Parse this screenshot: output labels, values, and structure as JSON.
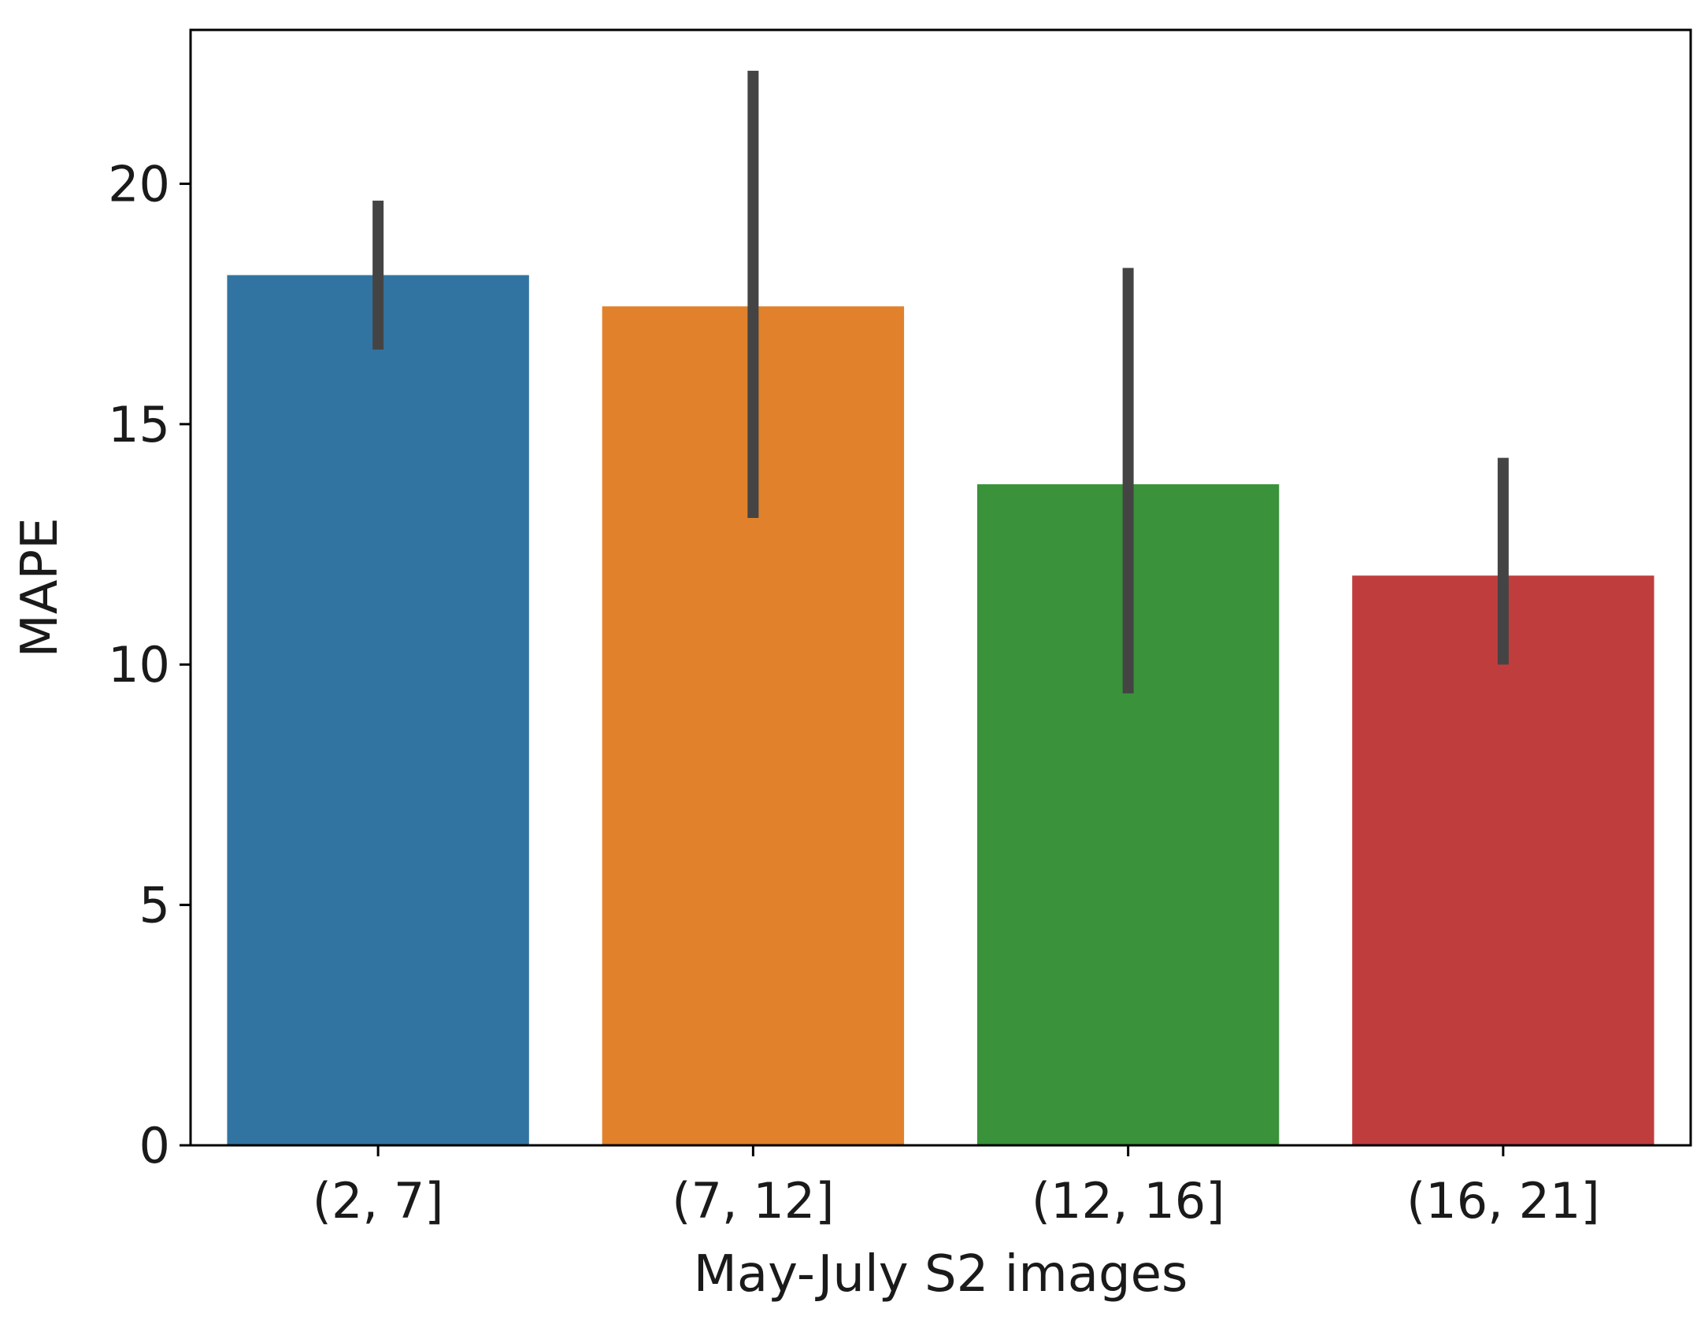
{
  "chart_data": {
    "type": "bar",
    "title": "",
    "xlabel": "May-July S2 images",
    "ylabel": "MAPE",
    "categories": [
      "(2, 7]",
      "(7, 12]",
      "(12, 16]",
      "(16, 21]"
    ],
    "values": [
      18.1,
      17.45,
      13.75,
      11.85
    ],
    "error_low": [
      16.55,
      13.05,
      9.4,
      10.0
    ],
    "error_high": [
      19.65,
      22.35,
      18.25,
      14.3
    ],
    "colors": [
      "#3274a1",
      "#e1812c",
      "#3a923a",
      "#c03d3e"
    ],
    "error_color": "#444444",
    "ylim": [
      0,
      23.2
    ],
    "yticks": [
      0,
      5,
      10,
      15,
      20
    ],
    "grid": false
  }
}
